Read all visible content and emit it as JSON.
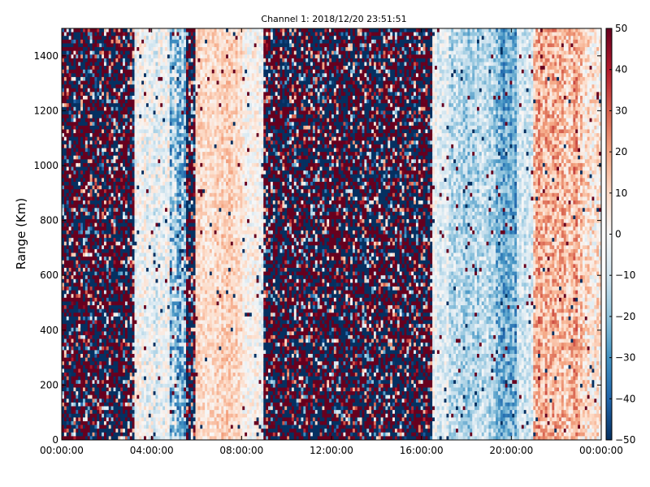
{
  "chart_data": {
    "type": "heatmap",
    "title": "Channel 1: 2018/12/20 23:51:51",
    "xlabel": "",
    "ylabel": "Range (Km)",
    "x_ticks": [
      "00:00:00",
      "04:00:00",
      "08:00:00",
      "12:00:00",
      "16:00:00",
      "20:00:00",
      "00:00:00"
    ],
    "xlim_hours": [
      0,
      24
    ],
    "y_ticks": [
      0,
      200,
      400,
      600,
      800,
      1000,
      1200,
      1400
    ],
    "ylim": [
      0,
      1500
    ],
    "colorbar": {
      "range": [
        -50,
        50
      ],
      "ticks": [
        50,
        40,
        30,
        20,
        10,
        0,
        -10,
        -20,
        -30,
        -40,
        -50
      ],
      "colormap": [
        "#053061",
        "#2166ac",
        "#4393c3",
        "#92c5de",
        "#d1e5f0",
        "#f7f7f7",
        "#fddbc7",
        "#f4a582",
        "#d6604d",
        "#b2182b",
        "#67001f"
      ]
    },
    "grid": false,
    "time_bands": [
      {
        "start_h": 0.0,
        "end_h": 3.2,
        "mean": 0,
        "noise": 50
      },
      {
        "start_h": 3.2,
        "end_h": 4.8,
        "mean": -2,
        "noise": 12
      },
      {
        "start_h": 4.8,
        "end_h": 5.5,
        "mean": -18,
        "noise": 20
      },
      {
        "start_h": 5.5,
        "end_h": 5.9,
        "mean": 0,
        "noise": 50
      },
      {
        "start_h": 5.9,
        "end_h": 8.0,
        "mean": 10,
        "noise": 9
      },
      {
        "start_h": 8.0,
        "end_h": 9.0,
        "mean": 0,
        "noise": 10
      },
      {
        "start_h": 9.0,
        "end_h": 16.5,
        "mean": 0,
        "noise": 50
      },
      {
        "start_h": 16.5,
        "end_h": 17.2,
        "mean": -4,
        "noise": 10
      },
      {
        "start_h": 17.2,
        "end_h": 19.3,
        "mean": -14,
        "noise": 12
      },
      {
        "start_h": 19.3,
        "end_h": 20.2,
        "mean": -26,
        "noise": 14
      },
      {
        "start_h": 20.2,
        "end_h": 21.0,
        "mean": -8,
        "noise": 10
      },
      {
        "start_h": 21.0,
        "end_h": 23.2,
        "mean": 16,
        "noise": 14
      },
      {
        "start_h": 23.2,
        "end_h": 24.0,
        "mean": 6,
        "noise": 14
      }
    ]
  }
}
